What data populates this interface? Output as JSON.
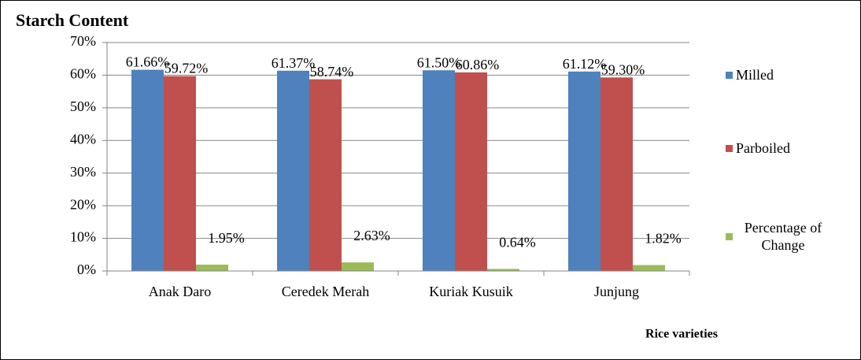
{
  "chart_data": {
    "type": "bar",
    "title": "Starch Content",
    "x_label": "Rice varieties",
    "categories": [
      "Anak Daro",
      "Ceredek Merah",
      "Kuriak Kusuik",
      "Junjung"
    ],
    "series": [
      {
        "name": "Milled",
        "color": "#4f81bd",
        "values": [
          61.66,
          61.37,
          61.5,
          61.12
        ],
        "value_labels": [
          "61.66%",
          "61.37%",
          "61.50%",
          "61.12%"
        ]
      },
      {
        "name": "Parboiled",
        "color": "#c0504d",
        "values": [
          59.72,
          58.74,
          60.86,
          59.3
        ],
        "value_labels": [
          "59.72%",
          "58.74%",
          "60.86%",
          "59.30%"
        ]
      },
      {
        "name": "Percentage of Change",
        "color": "#9bbb59",
        "values": [
          1.95,
          2.63,
          0.64,
          1.82
        ],
        "value_labels": [
          "1.95%",
          "2.63%",
          "0.64%",
          "1.82%"
        ]
      }
    ],
    "ylim": [
      0,
      70
    ],
    "yticks": [
      {
        "value": 0,
        "label": "0%"
      },
      {
        "value": 10,
        "label": "10%"
      },
      {
        "value": 20,
        "label": "20%"
      },
      {
        "value": 30,
        "label": "30%"
      },
      {
        "value": 40,
        "label": "40%"
      },
      {
        "value": 50,
        "label": "50%"
      },
      {
        "value": 60,
        "label": "60%"
      },
      {
        "value": 70,
        "label": "70%"
      }
    ],
    "grid": true,
    "legend": "right"
  }
}
